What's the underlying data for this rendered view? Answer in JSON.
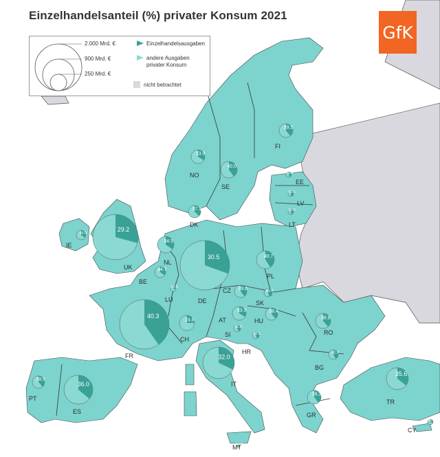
{
  "title": "Einzelhandelsanteil (%) privater Konsum 2021",
  "logo_text": "GfK",
  "legend": {
    "size_labels": [
      "2.000 Mrd. €",
      "900 Mrd. €",
      "250 Mrd. €"
    ],
    "retail_label": "Einzelhandelsausgaben",
    "other_label_line1": "andere Ausgaben",
    "other_label_line2": "privater Konsum",
    "not_considered_label": "nicht betrachtet"
  },
  "colors": {
    "land": "#7dd3ce",
    "pie_retail": "#3aa197",
    "pie_other": "#8ad9d3",
    "not_considered": "#d8d8de",
    "border": "#333333",
    "sea": "#ffffff",
    "logo": "#f26522"
  },
  "countries": [
    {
      "code": "UK",
      "value": "29.2"
    },
    {
      "code": "IE",
      "value": "34.0"
    },
    {
      "code": "NO",
      "value": "33.9"
    },
    {
      "code": "SE",
      "value": "40.0"
    },
    {
      "code": "FI",
      "value": "39.5"
    },
    {
      "code": "EE",
      "value": "43.4"
    },
    {
      "code": "LV",
      "value": "46.1"
    },
    {
      "code": "LT",
      "value": "45.0"
    },
    {
      "code": "DK",
      "value": "37.1"
    },
    {
      "code": "NL",
      "value": "34.5"
    },
    {
      "code": "BE",
      "value": "34.7"
    },
    {
      "code": "LU",
      "value": "28.6"
    },
    {
      "code": "DE",
      "value": "30.5"
    },
    {
      "code": "PL",
      "value": "40.7"
    },
    {
      "code": "CZ",
      "value": "39.6"
    },
    {
      "code": "SK",
      "value": "45.8"
    },
    {
      "code": "AT",
      "value": "33.3"
    },
    {
      "code": "HU",
      "value": "38.4"
    },
    {
      "code": "CH",
      "value": "24.8"
    },
    {
      "code": "FR",
      "value": "40.3"
    },
    {
      "code": "SI",
      "value": "41.0"
    },
    {
      "code": "HR",
      "value": "43.1"
    },
    {
      "code": "RO",
      "value": "38.8"
    },
    {
      "code": "BG",
      "value": "42.0"
    },
    {
      "code": "IT",
      "value": "32.0"
    },
    {
      "code": "ES",
      "value": "36.0"
    },
    {
      "code": "PT",
      "value": "38.5"
    },
    {
      "code": "GR",
      "value": "39.3"
    },
    {
      "code": "TR",
      "value": "35.6"
    },
    {
      "code": "CY",
      "value": "30.1"
    },
    {
      "code": "MT",
      "value": "44.7"
    }
  ]
}
